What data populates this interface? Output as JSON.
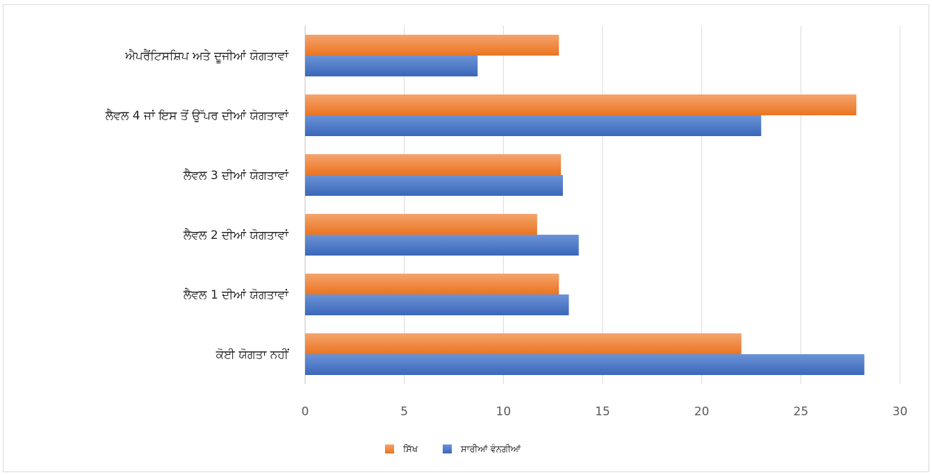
{
  "chart_data": {
    "type": "bar",
    "orientation": "horizontal",
    "categories": [
      "ਐਪਰੈਂਟਿਸਸ਼ਿਪ ਅਤੇ ਦੂਜੀਆਂ ਯੋਗਤਾਵਾਂ",
      "ਲੈਵਲ 4 ਜਾਂ ਇਸ ਤੋਂ ਉੱਪਰ ਦੀਆਂ ਯੋਗਤਾਵਾਂ",
      "ਲੈਵਲ 3 ਦੀਆਂ ਯੋਗਤਾਵਾਂ",
      "ਲੈਵਲ 2 ਦੀਆਂ ਯੋਗਤਾਵਾਂ",
      "ਲੈਵਲ 1 ਦੀਆਂ ਯੋਗਤਾਵਾਂ",
      "ਕੋਈ ਯੋਗਤਾ ਨਹੀਂ"
    ],
    "series": [
      {
        "name": "ਸਿੱਖ",
        "color": "#ED7D31",
        "values": [
          12.8,
          27.8,
          12.9,
          11.7,
          12.8,
          22.0
        ]
      },
      {
        "name": "ਸਾਰੀਆਂ ਵੰਨਗੀਆਂ",
        "color": "#4472C4",
        "values": [
          8.7,
          23.0,
          13.0,
          13.8,
          13.3,
          28.2
        ]
      }
    ],
    "xlim": [
      0,
      30
    ],
    "xticks": [
      "0",
      "5",
      "10",
      "15",
      "20",
      "25",
      "30"
    ],
    "grid": true,
    "legend_position": "bottom"
  }
}
